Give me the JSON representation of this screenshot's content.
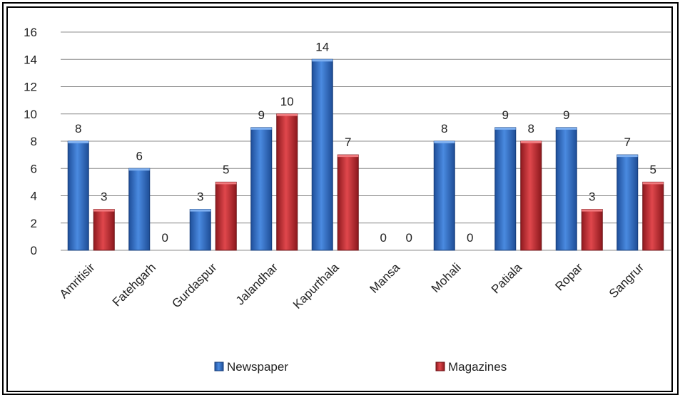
{
  "chart_data": {
    "type": "bar",
    "categories": [
      "Amritisir",
      "Fatehgarh",
      "Gurdaspur",
      "Jalandhar",
      "Kapurthala",
      "Mansa",
      "Mohali",
      "Patiala",
      "Ropar",
      "Sangrur"
    ],
    "series": [
      {
        "name": "Newspaper",
        "values": [
          8,
          6,
          3,
          9,
          14,
          0,
          8,
          9,
          9,
          7
        ],
        "color": "#2e6fc4"
      },
      {
        "name": "Magazines",
        "values": [
          3,
          0,
          5,
          10,
          7,
          0,
          0,
          8,
          3,
          5
        ],
        "color": "#c1272d"
      }
    ],
    "title": "",
    "xlabel": "",
    "ylabel": "",
    "ylim": [
      0,
      16
    ],
    "yticks": [
      0,
      2,
      4,
      6,
      8,
      10,
      12,
      14,
      16
    ],
    "grid": true,
    "legend_position": "bottom"
  }
}
